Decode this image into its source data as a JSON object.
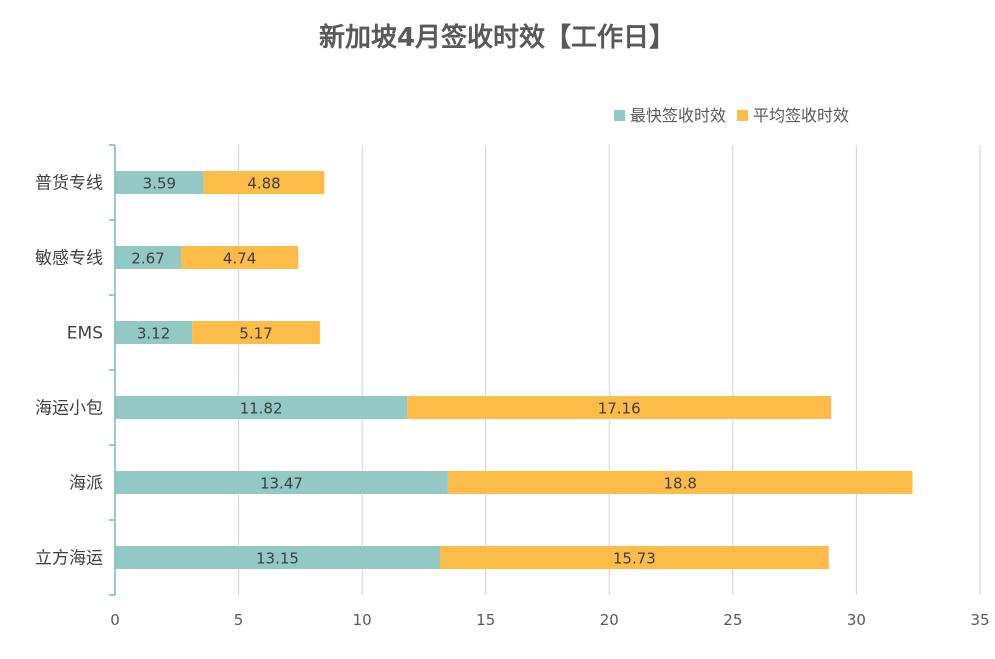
{
  "chart_data": {
    "type": "bar",
    "orientation": "horizontal",
    "stacked": true,
    "title": "新加坡4月签收时效【工作日】",
    "categories": [
      "普货专线",
      "敏感专线",
      "EMS",
      "海运小包",
      "海派",
      "立方海运"
    ],
    "series": [
      {
        "name": "最快签收时效",
        "color": "#92C9C4",
        "values": [
          3.59,
          2.67,
          3.12,
          11.82,
          13.47,
          13.15
        ]
      },
      {
        "name": "平均签收时效",
        "color": "#FDBB48",
        "values": [
          4.88,
          4.74,
          5.17,
          17.16,
          18.8,
          15.73
        ]
      }
    ],
    "data_labels": [
      [
        "3.59",
        "2.67",
        "3.12",
        "11.82",
        "13.47",
        "13.15"
      ],
      [
        "4.88",
        "4.74",
        "5.17",
        "17.16",
        "18.8",
        "15.73"
      ]
    ],
    "xlim": [
      0,
      35
    ],
    "xticks": [
      0,
      5,
      10,
      15,
      20,
      25,
      30,
      35
    ],
    "xtick_labels": [
      "0",
      "5",
      "10",
      "15",
      "20",
      "25",
      "30",
      "35"
    ],
    "grid": "vertical",
    "legend_position": "top-right",
    "axis_color": "#7FBFB7",
    "grid_color": "#D9D9D9"
  }
}
